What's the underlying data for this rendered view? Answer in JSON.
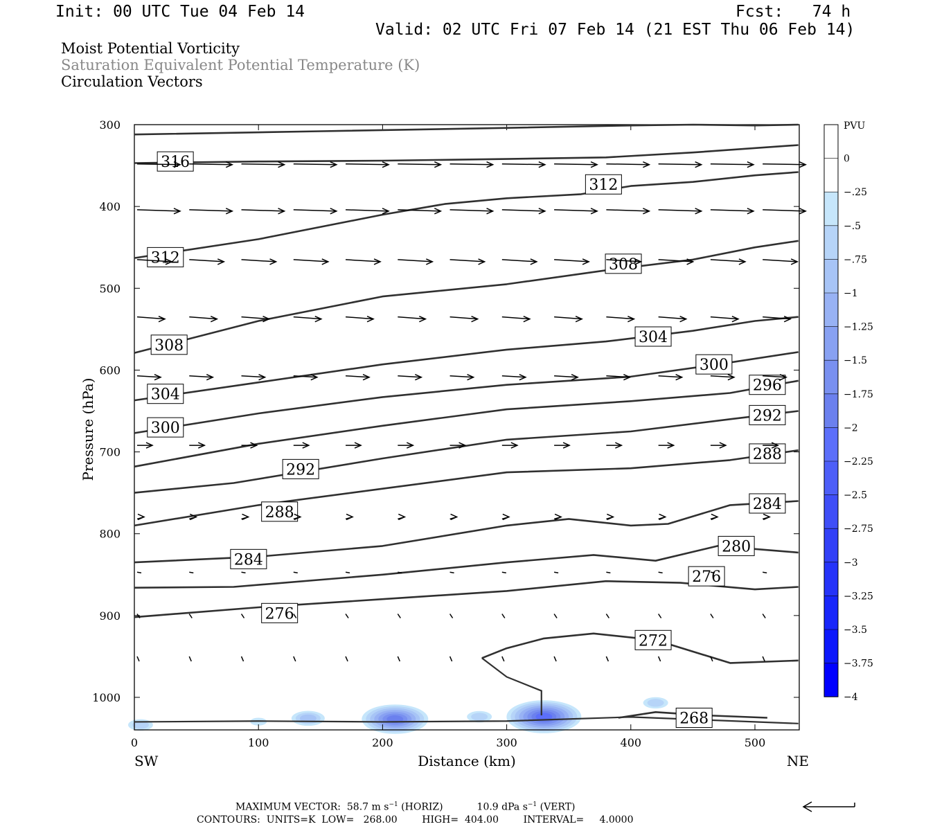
{
  "header": {
    "init": "Init: 00 UTC Tue 04 Feb 14",
    "fcst": "Fcst:   74 h",
    "valid": "Valid: 02 UTC Fri 07 Feb 14 (21 EST Thu 06 Feb 14)"
  },
  "fields": [
    "Moist Potential Vorticity",
    "Saturation Equivalent Potential Temperature (K)",
    "Circulation Vectors"
  ],
  "footer": {
    "max_vector_label": "MAXIMUM VECTOR:",
    "horiz_value": "58.7 m s",
    "horiz_suffix": " (HORIZ)",
    "vert_value": "10.9 dPa s",
    "vert_suffix": " (VERT)",
    "exponent": "−1",
    "contours_line": "CONTOURS:  UNITS=K  LOW=   268.00        HIGH=  404.00        INTERVAL=     4.0000"
  },
  "chart_data": {
    "type": "contour",
    "xlabel": "Distance (km)",
    "ylabel": "Pressure (hPa)",
    "xlim": [
      0,
      535
    ],
    "ylim": [
      1040,
      300
    ],
    "x_ticks": [
      0,
      100,
      200,
      300,
      400,
      500
    ],
    "y_ticks": [
      300,
      400,
      500,
      600,
      700,
      800,
      900,
      1000
    ],
    "x_end_labels": {
      "left": "SW",
      "right": "NE"
    },
    "colorbar": {
      "title": "PVU",
      "levels": [
        "0",
        "−.25",
        "−.5",
        "−.75",
        "−1",
        "−1.25",
        "−1.5",
        "−1.75",
        "−2",
        "−2.25",
        "−2.5",
        "−2.75",
        "−3",
        "−3.25",
        "−3.5",
        "−3.75",
        "−4"
      ],
      "colors": [
        "#ffffff",
        "#ffffff",
        "#c6e6fb",
        "#b6d4f8",
        "#a7c4f6",
        "#98b2f4",
        "#88a1f2",
        "#7990f0",
        "#6b80ee",
        "#5c6ffa",
        "#4d5ef8",
        "#3f4ef7",
        "#3240f7",
        "#2533f9",
        "#1826fa",
        "#0c18fc",
        "#0000ff"
      ]
    },
    "contours": [
      {
        "label": "316",
        "points": [
          [
            0,
            312
          ],
          [
            150,
            308
          ],
          [
            300,
            304
          ],
          [
            400,
            301
          ],
          [
            450,
            300
          ],
          [
            500,
            301
          ],
          [
            535,
            300
          ]
        ]
      },
      {
        "label": "316",
        "labeled": true,
        "label_at": [
          33,
          345
        ],
        "points": [
          [
            0,
            347
          ],
          [
            100,
            345
          ],
          [
            200,
            344
          ],
          [
            300,
            342
          ],
          [
            380,
            340
          ],
          [
            450,
            334
          ],
          [
            535,
            325
          ]
        ]
      },
      {
        "label": "312",
        "labeled": true,
        "label_at": [
          378,
          373
        ],
        "points": [
          [
            0,
            463
          ],
          [
            100,
            440
          ],
          [
            200,
            410
          ],
          [
            250,
            397
          ],
          [
            300,
            390
          ],
          [
            360,
            385
          ],
          [
            400,
            375
          ],
          [
            450,
            370
          ],
          [
            500,
            362
          ],
          [
            535,
            358
          ]
        ]
      },
      {
        "label": "312",
        "labeled": true,
        "label_at": [
          25,
          462
        ],
        "points": [
          [
            0,
            468
          ]
        ]
      },
      {
        "label": "308",
        "labeled": true,
        "label_at": [
          394,
          470
        ],
        "points": [
          [
            0,
            579
          ],
          [
            100,
            540
          ],
          [
            200,
            510
          ],
          [
            300,
            495
          ],
          [
            380,
            478
          ],
          [
            450,
            465
          ],
          [
            500,
            450
          ],
          [
            535,
            442
          ]
        ]
      },
      {
        "label": "308",
        "labeled": true,
        "label_at": [
          28,
          569
        ],
        "points": []
      },
      {
        "label": "304",
        "labeled": true,
        "label_at": [
          418,
          559
        ],
        "points": [
          [
            0,
            637
          ],
          [
            100,
            615
          ],
          [
            200,
            593
          ],
          [
            300,
            575
          ],
          [
            380,
            565
          ],
          [
            450,
            552
          ],
          [
            500,
            540
          ],
          [
            535,
            535
          ]
        ]
      },
      {
        "label": "304",
        "labeled": true,
        "label_at": [
          25,
          629
        ],
        "points": []
      },
      {
        "label": "300",
        "labeled": true,
        "label_at": [
          467,
          593
        ],
        "points": [
          [
            0,
            677
          ],
          [
            100,
            653
          ],
          [
            200,
            633
          ],
          [
            300,
            618
          ],
          [
            400,
            608
          ],
          [
            470,
            593
          ],
          [
            535,
            578
          ]
        ]
      },
      {
        "label": "300",
        "labeled": true,
        "label_at": [
          25,
          670
        ],
        "points": []
      },
      {
        "label": "296",
        "labeled": true,
        "label_at": [
          510,
          618
        ],
        "points": [
          [
            0,
            718
          ],
          [
            100,
            690
          ],
          [
            200,
            668
          ],
          [
            300,
            648
          ],
          [
            400,
            638
          ],
          [
            480,
            628
          ],
          [
            535,
            613
          ]
        ]
      },
      {
        "label": "292",
        "labeled": true,
        "label_at": [
          510,
          655
        ],
        "points": [
          [
            0,
            750
          ],
          [
            80,
            738
          ],
          [
            200,
            708
          ],
          [
            300,
            685
          ],
          [
            400,
            675
          ],
          [
            480,
            660
          ],
          [
            535,
            650
          ]
        ]
      },
      {
        "label": "292",
        "labeled": true,
        "label_at": [
          134,
          721
        ],
        "points": []
      },
      {
        "label": "288",
        "labeled": true,
        "label_at": [
          510,
          702
        ],
        "points": [
          [
            0,
            790
          ],
          [
            100,
            765
          ],
          [
            200,
            745
          ],
          [
            300,
            725
          ],
          [
            400,
            720
          ],
          [
            480,
            710
          ],
          [
            535,
            698
          ]
        ]
      },
      {
        "label": "288",
        "labeled": true,
        "label_at": [
          117,
          773
        ],
        "points": []
      },
      {
        "label": "284",
        "labeled": true,
        "label_at": [
          510,
          763
        ],
        "points": [
          [
            0,
            835
          ],
          [
            100,
            828
          ],
          [
            200,
            815
          ],
          [
            300,
            790
          ],
          [
            350,
            782
          ],
          [
            400,
            790
          ],
          [
            430,
            788
          ],
          [
            480,
            765
          ],
          [
            535,
            760
          ]
        ]
      },
      {
        "label": "284",
        "labeled": true,
        "label_at": [
          92,
          831
        ],
        "points": []
      },
      {
        "label": "280",
        "labeled": true,
        "label_at": [
          485,
          815
        ],
        "points": [
          [
            0,
            866
          ],
          [
            80,
            865
          ],
          [
            200,
            850
          ],
          [
            300,
            835
          ],
          [
            370,
            826
          ],
          [
            420,
            833
          ],
          [
            470,
            815
          ],
          [
            535,
            823
          ]
        ]
      },
      {
        "label": "276",
        "labeled": true,
        "label_at": [
          461,
          852
        ],
        "points": [
          [
            0,
            902
          ],
          [
            100,
            890
          ],
          [
            200,
            880
          ],
          [
            300,
            870
          ],
          [
            380,
            858
          ],
          [
            440,
            860
          ],
          [
            500,
            868
          ],
          [
            535,
            865
          ]
        ]
      },
      {
        "label": "276",
        "labeled": true,
        "label_at": [
          117,
          897
        ],
        "points": []
      },
      {
        "label": "272",
        "labeled": true,
        "label_at": [
          418,
          930
        ],
        "points": [
          [
            280,
            952
          ],
          [
            300,
            940
          ],
          [
            330,
            928
          ],
          [
            370,
            922
          ],
          [
            420,
            930
          ],
          [
            480,
            958
          ],
          [
            535,
            955
          ]
        ]
      },
      {
        "label": "268",
        "labeled": true,
        "label_at": [
          451,
          1025
        ],
        "points": [
          [
            390,
            1025
          ],
          [
            420,
            1018
          ],
          [
            460,
            1022
          ],
          [
            510,
            1025
          ]
        ]
      }
    ],
    "blobs": [
      {
        "x": 5,
        "p": 1032,
        "level": 3
      },
      {
        "x": 100,
        "p": 1028,
        "level": 2
      },
      {
        "x": 140,
        "p": 1024,
        "level": 4
      },
      {
        "x": 210,
        "p": 1025,
        "level": 8
      },
      {
        "x": 278,
        "p": 1022,
        "level": 3
      },
      {
        "x": 330,
        "p": 1022,
        "level": 9
      },
      {
        "x": 420,
        "p": 1005,
        "level": 3
      }
    ]
  }
}
